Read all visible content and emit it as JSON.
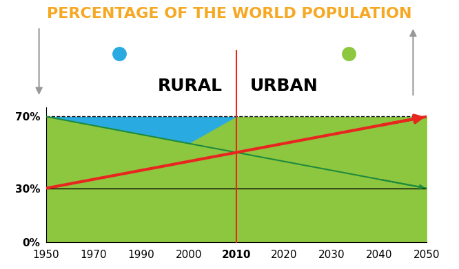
{
  "chart_data": {
    "type": "area",
    "title": "PERCENTAGE OF THE WORLD POPULATION",
    "categories": [
      "1950",
      "1970",
      "1990",
      "2000",
      "2010",
      "2020",
      "2030",
      "2040",
      "2050"
    ],
    "series": [
      {
        "name": "RURAL",
        "color": "#29abe2",
        "values": [
          70,
          65,
          60,
          55,
          50,
          45,
          40,
          35,
          30
        ]
      },
      {
        "name": "URBAN",
        "color": "#8dc63f",
        "values": [
          30,
          35,
          40,
          45,
          50,
          55,
          60,
          65,
          70
        ]
      }
    ],
    "ylim": [
      0,
      75
    ],
    "yticks": [
      {
        "value": 0,
        "label": "0%"
      },
      {
        "value": 30,
        "label": "30%"
      },
      {
        "value": 70,
        "label": "70%"
      }
    ],
    "grid": false
  }
}
